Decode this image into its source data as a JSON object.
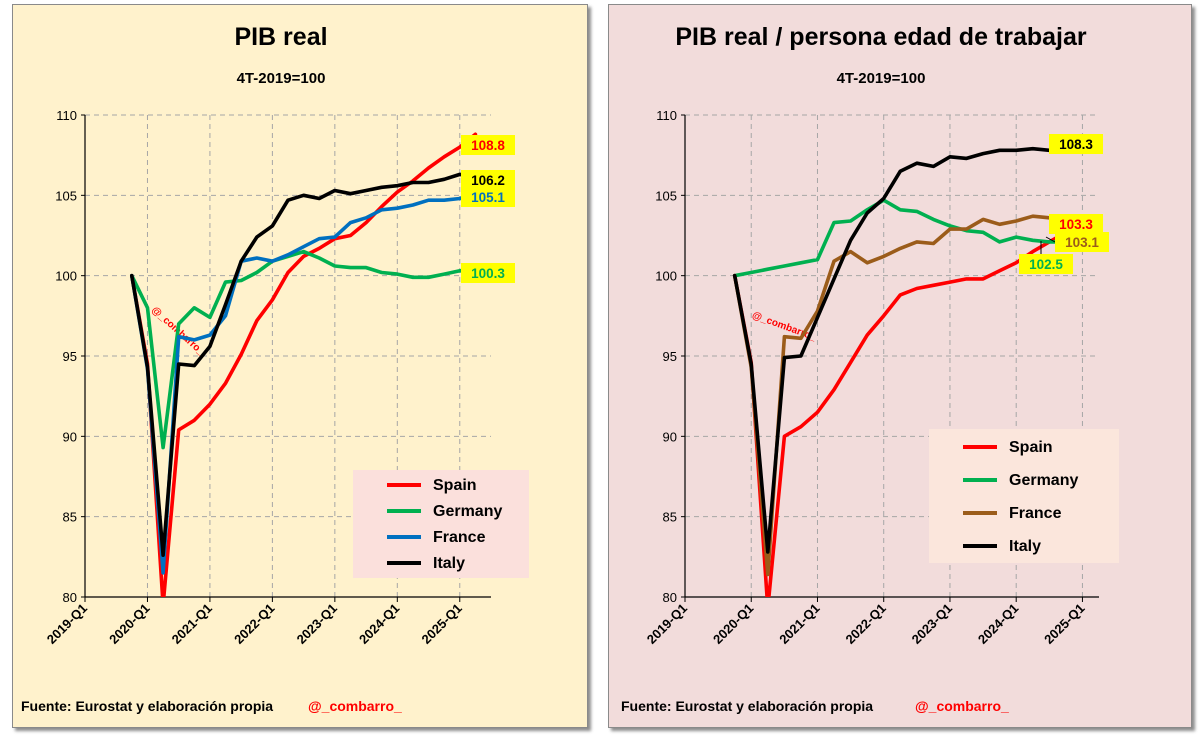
{
  "chart_data": [
    {
      "type": "line",
      "title": "PIB real",
      "subtitle": "4T-2019=100",
      "ylim": [
        80,
        110
      ],
      "yticks": [
        80,
        85,
        90,
        95,
        100,
        105,
        110
      ],
      "x": [
        "2019-Q4",
        "2020-Q1",
        "2020-Q2",
        "2020-Q3",
        "2020-Q4",
        "2021-Q1",
        "2021-Q2",
        "2021-Q3",
        "2021-Q4",
        "2022-Q1",
        "2022-Q2",
        "2022-Q3",
        "2022-Q4",
        "2023-Q1",
        "2023-Q2",
        "2023-Q3",
        "2023-Q4",
        "2024-Q1",
        "2024-Q2",
        "2024-Q3",
        "2024-Q4",
        "2025-Q1",
        "2025-Q2"
      ],
      "xticks": [
        "2019-Q1",
        "2020-Q1",
        "2021-Q1",
        "2022-Q1",
        "2023-Q1",
        "2024-Q1",
        "2025-Q1"
      ],
      "grid": true,
      "series": [
        {
          "name": "Spain",
          "color": "#ff0000",
          "end_label": "108.8",
          "label_bg": "#ffff00",
          "label_color": "#ff0000",
          "values": [
            100.0,
            94.5,
            79.5,
            90.4,
            91.0,
            92.0,
            93.3,
            95.1,
            97.2,
            98.5,
            100.2,
            101.2,
            101.7,
            102.3,
            102.5,
            103.3,
            104.3,
            105.2,
            105.9,
            106.7,
            107.4,
            108.0,
            108.8
          ]
        },
        {
          "name": "Germany",
          "color": "#00b050",
          "end_label": "100.3",
          "label_bg": "#ffff00",
          "label_color": "#00b050",
          "values": [
            100.0,
            98.0,
            89.3,
            97.0,
            98.0,
            97.4,
            99.6,
            99.7,
            100.2,
            100.9,
            101.2,
            101.5,
            101.1,
            100.6,
            100.5,
            100.5,
            100.2,
            100.1,
            99.9,
            99.9,
            100.1,
            100.3,
            100.3
          ]
        },
        {
          "name": "France",
          "color": "#0070c0",
          "end_label": "105.1",
          "label_bg": "#ffff00",
          "label_color": "#0070c0",
          "values": [
            100.0,
            94.2,
            81.5,
            96.2,
            96.0,
            96.3,
            97.5,
            100.9,
            101.1,
            100.9,
            101.3,
            101.8,
            102.3,
            102.4,
            103.3,
            103.6,
            104.1,
            104.2,
            104.4,
            104.7,
            104.7,
            104.8,
            105.1
          ]
        },
        {
          "name": "Italy",
          "color": "#000000",
          "end_label": "106.2",
          "label_bg": "#ffff00",
          "label_color": "#000000",
          "values": [
            100.0,
            94.3,
            82.6,
            94.5,
            94.4,
            95.6,
            98.2,
            100.9,
            102.4,
            103.1,
            104.7,
            105.0,
            104.8,
            105.3,
            105.1,
            105.3,
            105.5,
            105.6,
            105.8,
            105.8,
            106.0,
            106.3,
            106.2
          ]
        }
      ],
      "legend": "bottom-right",
      "watermark": "@_combarro_"
    },
    {
      "type": "line",
      "title": "PIB real / persona edad de trabajar",
      "subtitle": "4T-2019=100",
      "ylim": [
        80,
        110
      ],
      "yticks": [
        80,
        85,
        90,
        95,
        100,
        105,
        110
      ],
      "x": [
        "2019-Q4",
        "2020-Q1",
        "2020-Q2",
        "2020-Q3",
        "2020-Q4",
        "2021-Q1",
        "2021-Q2",
        "2021-Q3",
        "2021-Q4",
        "2022-Q1",
        "2022-Q2",
        "2022-Q3",
        "2022-Q4",
        "2023-Q1",
        "2023-Q2",
        "2023-Q3",
        "2023-Q4",
        "2024-Q1",
        "2024-Q2",
        "2024-Q3",
        "2024-Q4",
        "2025-Q1"
      ],
      "xticks": [
        "2019-Q1",
        "2020-Q1",
        "2021-Q1",
        "2022-Q1",
        "2023-Q1",
        "2024-Q1",
        "2025-Q1"
      ],
      "grid": true,
      "series": [
        {
          "name": "Spain",
          "color": "#ff0000",
          "end_label": "103.3",
          "label_bg": "#ffff00",
          "label_color": "#ff0000",
          "values": [
            100.0,
            94.6,
            79.3,
            90.0,
            90.6,
            91.5,
            92.9,
            94.6,
            96.3,
            97.5,
            98.8,
            99.2,
            99.4,
            99.6,
            99.8,
            99.8,
            100.3,
            100.8,
            101.5,
            102.1,
            102.7,
            103.3
          ]
        },
        {
          "name": "Germany",
          "color": "#00b050",
          "end_label": "102.5",
          "label_bg": "#ffff00",
          "label_color": "#00b050",
          "values": [
            100.0,
            100.2,
            100.4,
            100.6,
            100.8,
            101.0,
            103.3,
            103.4,
            104.1,
            104.7,
            104.1,
            104.0,
            103.5,
            103.1,
            102.8,
            102.7,
            102.1,
            102.4,
            102.2,
            102.1,
            102.1,
            102.5
          ]
        },
        {
          "name": "France",
          "color": "#9b5c1a",
          "end_label": "103.1",
          "label_bg": "#ffff00",
          "label_color": "#9b5c1a",
          "values": [
            100.0,
            94.3,
            81.4,
            96.2,
            96.1,
            97.8,
            100.9,
            101.5,
            100.8,
            101.2,
            101.7,
            102.1,
            102.0,
            102.9,
            102.9,
            103.5,
            103.2,
            103.4,
            103.7,
            103.6,
            103.2,
            103.1
          ]
        },
        {
          "name": "Italy",
          "color": "#000000",
          "end_label": "108.3",
          "label_bg": "#ffff00",
          "label_color": "#000000",
          "values": [
            100.0,
            94.5,
            82.8,
            94.9,
            95.0,
            97.4,
            99.8,
            102.2,
            103.9,
            104.8,
            106.5,
            107.0,
            106.8,
            107.4,
            107.3,
            107.6,
            107.8,
            107.8,
            107.9,
            107.8,
            107.9,
            108.3
          ]
        }
      ],
      "legend": "bottom-right",
      "watermark": "@_combarro_"
    }
  ],
  "footer": {
    "source": "Fuente: Eurostat y elaboración propia",
    "handle": "@_combarro_"
  }
}
